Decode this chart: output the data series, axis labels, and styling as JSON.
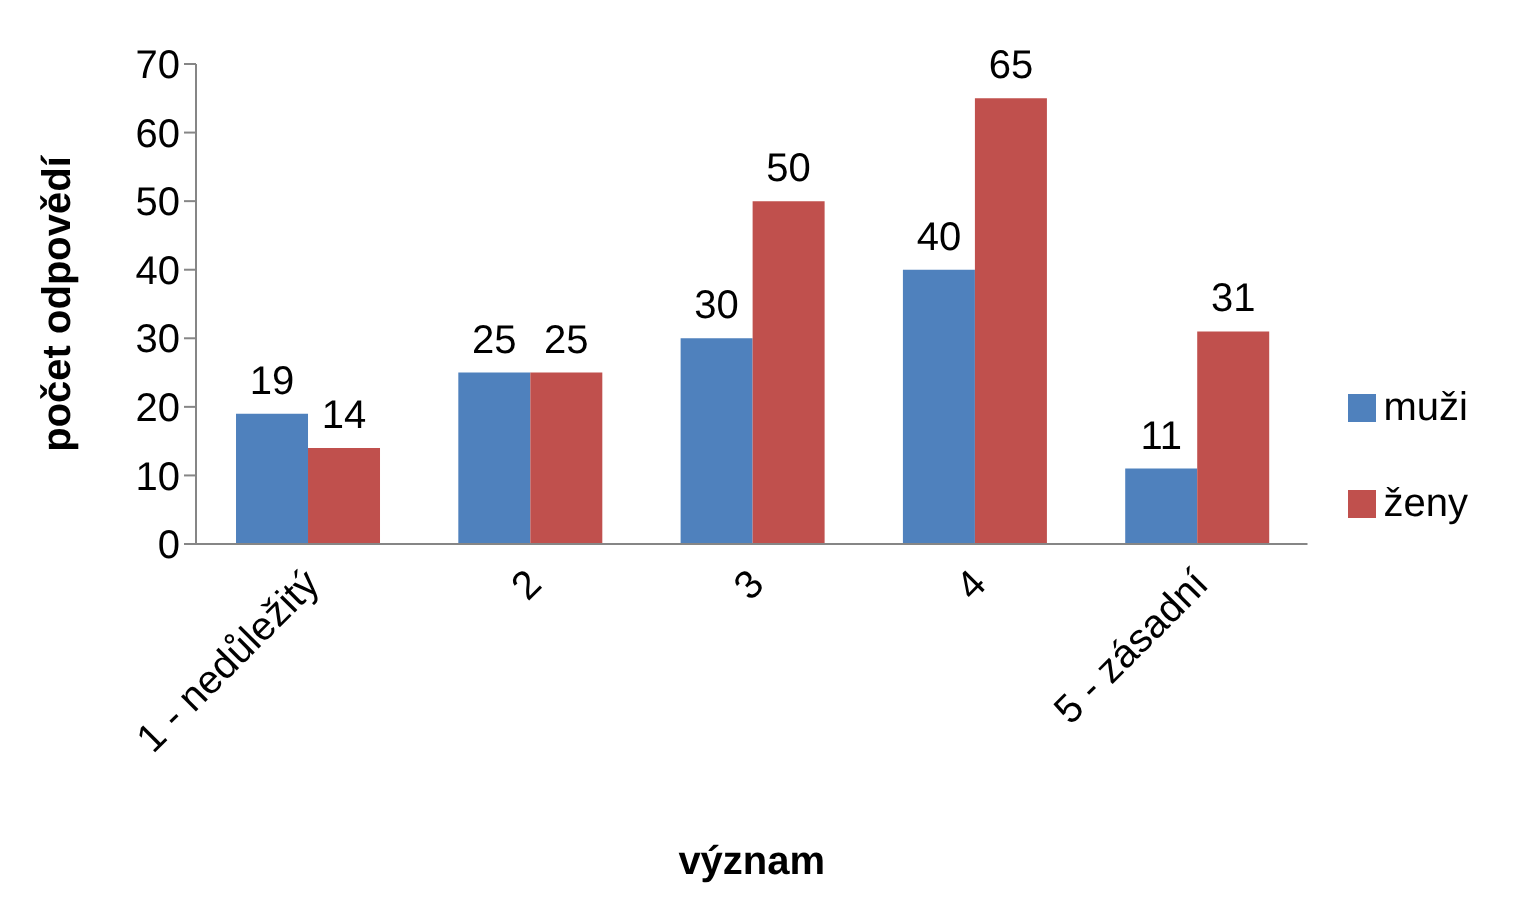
{
  "chart_data": {
    "type": "bar",
    "xlabel": "význam",
    "ylabel": "počet odpovědí",
    "categories": [
      "1 - nedůležitý",
      "2",
      "3",
      "4",
      "5 - zásadní"
    ],
    "series": [
      {
        "name": "muži",
        "color": "#4f81bd",
        "values": [
          19,
          25,
          30,
          40,
          11
        ]
      },
      {
        "name": "ženy",
        "color": "#c0504d",
        "values": [
          14,
          25,
          50,
          65,
          31
        ]
      }
    ],
    "ylim": [
      0,
      70
    ],
    "yticks": [
      0,
      10,
      20,
      30,
      40,
      50,
      60,
      70
    ],
    "data_labels": true,
    "grid": false,
    "legend": "right"
  }
}
